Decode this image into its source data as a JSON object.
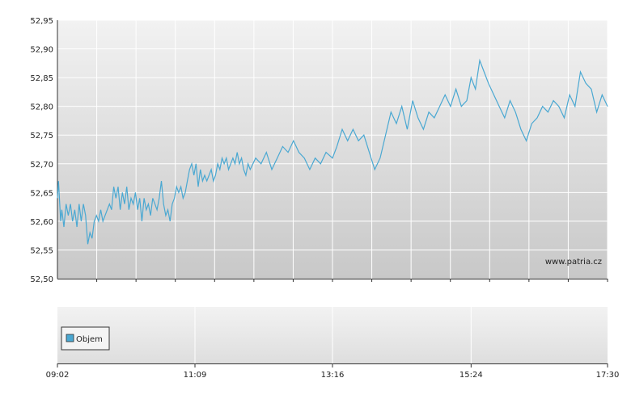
{
  "chart_data": {
    "type": "line",
    "title": "",
    "xlabel": "",
    "ylabel": "",
    "ylim": [
      52.5,
      52.95
    ],
    "yticks": [
      "52,50",
      "52,55",
      "52,60",
      "52,65",
      "52,70",
      "52,75",
      "52,80",
      "52,85",
      "52,90",
      "52,95"
    ],
    "xticks": [
      "09:02",
      "11:09",
      "13:16",
      "15:24",
      "17:30"
    ],
    "grid": true,
    "line_color": "#4aa8d2",
    "watermark": "www.patria.cz",
    "series": [
      {
        "x": [
          "09:02",
          "09:03",
          "09:05",
          "09:06",
          "09:08",
          "09:10",
          "09:12",
          "09:14",
          "09:16",
          "09:18",
          "09:20",
          "09:22",
          "09:24",
          "09:26",
          "09:28",
          "09:30",
          "09:32",
          "09:34",
          "09:36",
          "09:38",
          "09:40",
          "09:42",
          "09:44",
          "09:46",
          "09:48",
          "09:50",
          "09:52",
          "09:54",
          "09:56",
          "09:58",
          "10:00",
          "10:02",
          "10:04",
          "10:06",
          "10:08",
          "10:10",
          "10:12",
          "10:14",
          "10:16",
          "10:18",
          "10:20",
          "10:22",
          "10:24",
          "10:26",
          "10:28",
          "10:30",
          "10:32",
          "10:34",
          "10:36",
          "10:38",
          "10:40",
          "10:42",
          "10:44",
          "10:46",
          "10:48",
          "10:50",
          "10:52",
          "10:54",
          "10:56",
          "10:58",
          "11:00",
          "11:02",
          "11:04",
          "11:06",
          "11:08",
          "11:10",
          "11:12",
          "11:14",
          "11:16",
          "11:18",
          "11:20",
          "11:22",
          "11:24",
          "11:26",
          "11:28",
          "11:30",
          "11:32",
          "11:34",
          "11:36",
          "11:38",
          "11:40",
          "11:42",
          "11:44",
          "11:46",
          "11:48",
          "11:50",
          "11:52",
          "11:54",
          "11:56",
          "11:58",
          "12:00",
          "12:05",
          "12:10",
          "12:15",
          "12:20",
          "12:25",
          "12:30",
          "12:35",
          "12:40",
          "12:45",
          "12:50",
          "12:55",
          "13:00",
          "13:05",
          "13:10",
          "13:16",
          "13:20",
          "13:25",
          "13:30",
          "13:35",
          "13:40",
          "13:45",
          "13:50",
          "13:55",
          "14:00",
          "14:05",
          "14:10",
          "14:15",
          "14:20",
          "14:25",
          "14:30",
          "14:35",
          "14:40",
          "14:45",
          "14:50",
          "14:55",
          "15:00",
          "15:05",
          "15:10",
          "15:15",
          "15:20",
          "15:24",
          "15:28",
          "15:32",
          "15:36",
          "15:40",
          "15:45",
          "15:50",
          "15:55",
          "16:00",
          "16:05",
          "16:10",
          "16:15",
          "16:20",
          "16:25",
          "16:30",
          "16:35",
          "16:40",
          "16:45",
          "16:50",
          "16:55",
          "17:00",
          "17:05",
          "17:10",
          "17:15",
          "17:20",
          "17:25",
          "17:30"
        ],
        "values": [
          52.64,
          52.67,
          52.6,
          52.62,
          52.59,
          52.63,
          52.61,
          52.63,
          52.6,
          52.62,
          52.59,
          52.63,
          52.6,
          52.63,
          52.61,
          52.56,
          52.58,
          52.57,
          52.6,
          52.61,
          52.6,
          52.62,
          52.6,
          52.61,
          52.62,
          52.63,
          52.62,
          52.66,
          52.64,
          52.66,
          52.62,
          52.65,
          52.63,
          52.66,
          52.62,
          52.64,
          52.63,
          52.65,
          52.62,
          52.64,
          52.6,
          52.64,
          52.62,
          52.63,
          52.61,
          52.64,
          52.63,
          52.62,
          52.64,
          52.67,
          52.63,
          52.61,
          52.62,
          52.6,
          52.63,
          52.64,
          52.66,
          52.65,
          52.66,
          52.64,
          52.65,
          52.67,
          52.69,
          52.7,
          52.68,
          52.7,
          52.66,
          52.69,
          52.67,
          52.68,
          52.67,
          52.68,
          52.69,
          52.67,
          52.68,
          52.7,
          52.69,
          52.71,
          52.7,
          52.71,
          52.69,
          52.7,
          52.71,
          52.7,
          52.72,
          52.7,
          52.71,
          52.69,
          52.68,
          52.7,
          52.69,
          52.71,
          52.7,
          52.72,
          52.69,
          52.71,
          52.73,
          52.72,
          52.74,
          52.72,
          52.71,
          52.69,
          52.71,
          52.7,
          52.72,
          52.71,
          52.73,
          52.76,
          52.74,
          52.76,
          52.74,
          52.75,
          52.72,
          52.69,
          52.71,
          52.75,
          52.79,
          52.77,
          52.8,
          52.76,
          52.81,
          52.78,
          52.76,
          52.79,
          52.78,
          52.8,
          52.82,
          52.8,
          52.83,
          52.8,
          52.81,
          52.85,
          52.83,
          52.88,
          52.86,
          52.84,
          52.82,
          52.8,
          52.78,
          52.81,
          52.79,
          52.76,
          52.74,
          52.77,
          52.78,
          52.8,
          52.79,
          52.81,
          52.8,
          52.78,
          52.82,
          52.8,
          52.86,
          52.84,
          52.83,
          52.79,
          52.82,
          52.8
        ]
      }
    ],
    "volume_legend": "Objem"
  }
}
